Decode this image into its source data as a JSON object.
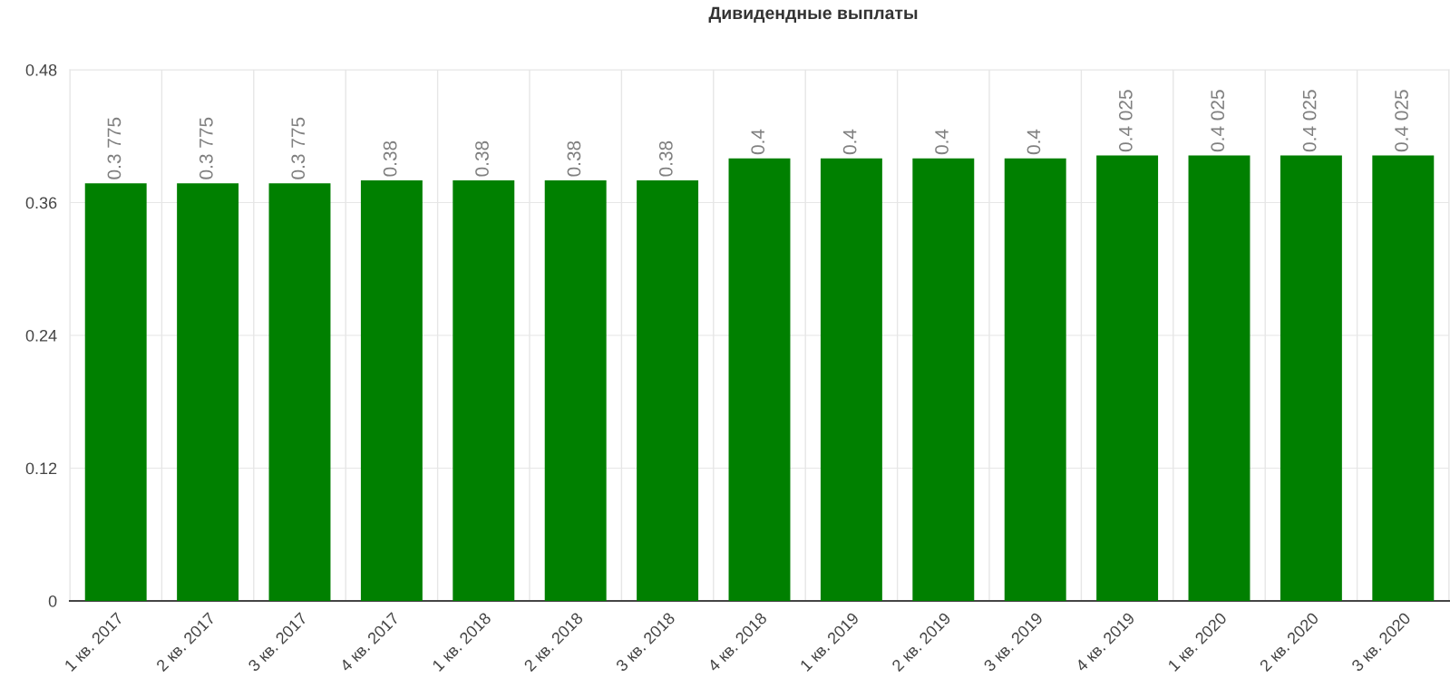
{
  "chart_data": {
    "type": "bar",
    "title": "Дивидендные выплаты",
    "categories": [
      "1 кв. 2017",
      "2 кв. 2017",
      "3 кв. 2017",
      "4 кв. 2017",
      "1 кв. 2018",
      "2 кв. 2018",
      "3 кв. 2018",
      "4 кв. 2018",
      "1 кв. 2019",
      "2 кв. 2019",
      "3 кв. 2019",
      "4 кв. 2019",
      "1 кв. 2020",
      "2 кв. 2020",
      "3 кв. 2020"
    ],
    "values": [
      0.3775,
      0.3775,
      0.3775,
      0.38,
      0.38,
      0.38,
      0.38,
      0.4,
      0.4,
      0.4,
      0.4,
      0.4025,
      0.4025,
      0.4025,
      0.4025
    ],
    "value_labels": [
      "0.3 775",
      "0.3 775",
      "0.3 775",
      "0.38",
      "0.38",
      "0.38",
      "0.38",
      "0.4",
      "0.4",
      "0.4",
      "0.4",
      "0.4 025",
      "0.4 025",
      "0.4 025",
      "0.4 025"
    ],
    "color": "#008000",
    "ylim": [
      0,
      0.48
    ],
    "yticks": [
      0,
      0.12,
      0.24,
      0.36,
      0.48
    ],
    "grid": true
  }
}
